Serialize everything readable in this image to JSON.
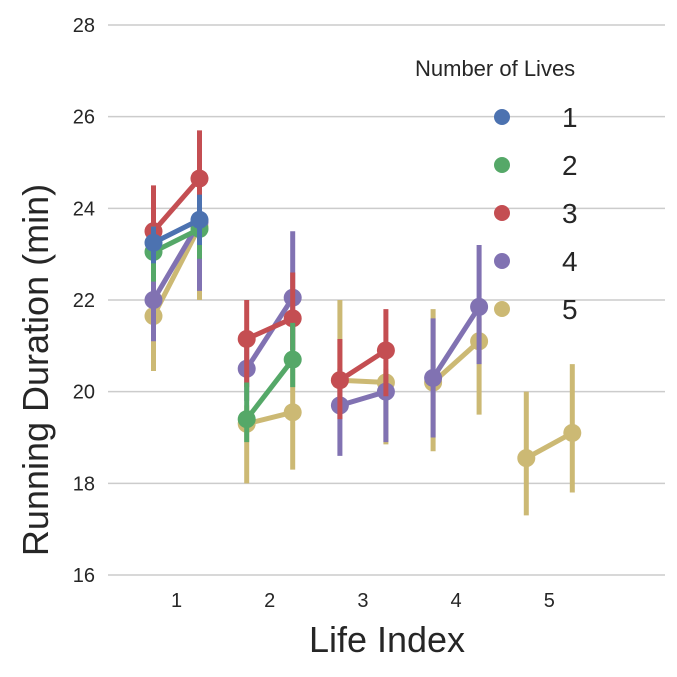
{
  "chart_data": {
    "type": "line",
    "title": "",
    "xlabel": "Life Index",
    "ylabel": "Running Duration (min)",
    "ylim": [
      16,
      28
    ],
    "yticks": [
      "16",
      "18",
      "20",
      "22",
      "24",
      "26",
      "28"
    ],
    "categories": [
      "1",
      "2",
      "3",
      "4",
      "5"
    ],
    "grid": true,
    "legend": {
      "title": "Number of Lives",
      "placement": "top-right"
    },
    "series": [
      {
        "name": "1",
        "color": "#4c72b0",
        "points": [
          {
            "cat": 1,
            "sub": 0,
            "y": 23.25,
            "lo": 22.8,
            "hi": 23.6
          },
          {
            "cat": 1,
            "sub": 1,
            "y": 23.75,
            "lo": 23.2,
            "hi": 24.3
          }
        ]
      },
      {
        "name": "2",
        "color": "#55a868",
        "points": [
          {
            "cat": 1,
            "sub": 0,
            "y": 23.05,
            "lo": 22.4,
            "hi": 23.6
          },
          {
            "cat": 1,
            "sub": 1,
            "y": 23.55,
            "lo": 22.9,
            "hi": 23.9
          },
          {
            "cat": 2,
            "sub": 0,
            "y": 19.4,
            "lo": 18.9,
            "hi": 20.2
          },
          {
            "cat": 2,
            "sub": 1,
            "y": 20.7,
            "lo": 20.1,
            "hi": 21.5
          }
        ]
      },
      {
        "name": "3",
        "color": "#c44e52",
        "points": [
          {
            "cat": 1,
            "sub": 0,
            "y": 23.5,
            "lo": 22.6,
            "hi": 24.5
          },
          {
            "cat": 1,
            "sub": 1,
            "y": 24.65,
            "lo": 23.6,
            "hi": 25.7
          },
          {
            "cat": 2,
            "sub": 0,
            "y": 21.15,
            "lo": 20.1,
            "hi": 22.0
          },
          {
            "cat": 2,
            "sub": 1,
            "y": 21.6,
            "lo": 20.9,
            "hi": 22.6
          },
          {
            "cat": 3,
            "sub": 0,
            "y": 20.25,
            "lo": 19.4,
            "hi": 21.15
          },
          {
            "cat": 3,
            "sub": 1,
            "y": 20.9,
            "lo": 19.9,
            "hi": 21.8
          }
        ]
      },
      {
        "name": "4",
        "color": "#8172b2",
        "points": [
          {
            "cat": 1,
            "sub": 0,
            "y": 22.0,
            "lo": 21.1,
            "hi": 23.0
          },
          {
            "cat": 1,
            "sub": 1,
            "y": 23.7,
            "lo": 22.2,
            "hi": 23.9
          },
          {
            "cat": 2,
            "sub": 0,
            "y": 20.5,
            "lo": 19.8,
            "hi": 21.2
          },
          {
            "cat": 2,
            "sub": 1,
            "y": 22.05,
            "lo": 20.9,
            "hi": 23.5
          },
          {
            "cat": 3,
            "sub": 0,
            "y": 19.7,
            "lo": 18.6,
            "hi": 20.5
          },
          {
            "cat": 3,
            "sub": 1,
            "y": 20.0,
            "lo": 18.9,
            "hi": 20.4
          },
          {
            "cat": 4,
            "sub": 0,
            "y": 20.3,
            "lo": 19.0,
            "hi": 21.6
          },
          {
            "cat": 4,
            "sub": 1,
            "y": 21.85,
            "lo": 20.6,
            "hi": 23.2
          }
        ]
      },
      {
        "name": "5",
        "color": "#ccb974",
        "points": [
          {
            "cat": 1,
            "sub": 0,
            "y": 21.65,
            "lo": 20.45,
            "hi": 22.5
          },
          {
            "cat": 1,
            "sub": 1,
            "y": 23.6,
            "lo": 22.0,
            "hi": 23.9
          },
          {
            "cat": 2,
            "sub": 0,
            "y": 19.3,
            "lo": 18.0,
            "hi": 19.7
          },
          {
            "cat": 2,
            "sub": 1,
            "y": 19.55,
            "lo": 18.3,
            "hi": 20.5
          },
          {
            "cat": 3,
            "sub": 0,
            "y": 20.25,
            "lo": 19.5,
            "hi": 22.0
          },
          {
            "cat": 3,
            "sub": 1,
            "y": 20.2,
            "lo": 18.85,
            "hi": 20.5
          },
          {
            "cat": 4,
            "sub": 0,
            "y": 20.2,
            "lo": 18.7,
            "hi": 21.8
          },
          {
            "cat": 4,
            "sub": 1,
            "y": 21.1,
            "lo": 19.5,
            "hi": 21.6
          },
          {
            "cat": 5,
            "sub": 0,
            "y": 18.55,
            "lo": 17.3,
            "hi": 20.0
          },
          {
            "cat": 5,
            "sub": 1,
            "y": 19.1,
            "lo": 17.8,
            "hi": 20.6
          }
        ]
      }
    ]
  }
}
